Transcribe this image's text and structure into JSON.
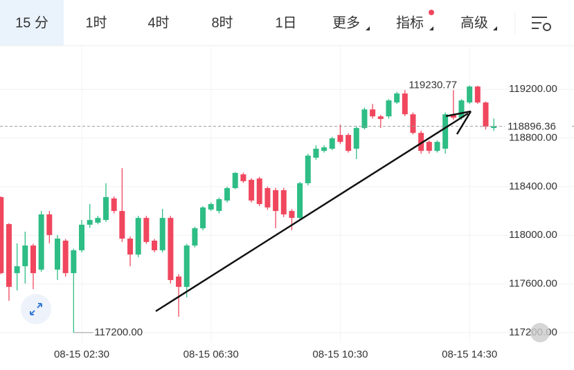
{
  "tabs": [
    "15 分",
    "1时",
    "4时",
    "8时",
    "1日",
    "更多",
    "指标",
    "高级"
  ],
  "chart_data": {
    "type": "candlestick",
    "categories": [
      null,
      null,
      null,
      null,
      null,
      null,
      null,
      null,
      null,
      null,
      "08-15 02:30",
      null,
      null,
      null,
      null,
      null,
      null,
      null,
      null,
      null,
      null,
      null,
      null,
      null,
      null,
      null,
      "08-15 06:30",
      null,
      null,
      null,
      null,
      null,
      null,
      null,
      null,
      null,
      null,
      null,
      null,
      null,
      null,
      null,
      "08-15 10:30",
      null,
      null,
      null,
      null,
      null,
      null,
      null,
      null,
      null,
      null,
      null,
      null,
      null,
      null,
      null,
      "08-15 14:30",
      null,
      null,
      null
    ],
    "open": [
      118314,
      118092,
      117689,
      117746,
      117916,
      117718,
      118172,
      117718,
      117956,
      117689,
      117877,
      118087,
      118104,
      118126,
      118303,
      118200,
      117973,
      117842,
      118143,
      117956,
      117877,
      118143,
      117661,
      117576,
      117916,
      118058,
      118212,
      118200,
      118286,
      118388,
      118501,
      118456,
      118467,
      118388,
      118371,
      118371,
      118200,
      118143,
      118428,
      118638,
      118694,
      118712,
      118825,
      118825,
      118712,
      118882,
      119035,
      118978,
      118978,
      119092,
      119166,
      118995,
      118842,
      118768,
      118694,
      118712,
      118995,
      118967,
      119092,
      119223,
      119092,
      118882
    ],
    "high": [
      118320,
      118100,
      117934,
      118030,
      117930,
      118200,
      118200,
      118002,
      117970,
      117890,
      118126,
      118257,
      118160,
      118428,
      118320,
      118552,
      117990,
      118160,
      118160,
      117970,
      118217,
      118160,
      117680,
      117930,
      118070,
      118240,
      118270,
      118310,
      118400,
      118520,
      118515,
      118470,
      118480,
      118400,
      118390,
      118390,
      118215,
      118440,
      118670,
      118740,
      118740,
      118810,
      118910,
      118840,
      118895,
      119050,
      119080,
      118990,
      119120,
      119180,
      119194,
      119010,
      118860,
      118780,
      118780,
      119010,
      119194,
      119120,
      119230.77,
      119230,
      119100,
      118960
    ],
    "low": [
      117680,
      117462,
      117547,
      117604,
      117558,
      117700,
      117934,
      117632,
      117660,
      117200,
      117860,
      118060,
      118090,
      118110,
      118180,
      117945,
      117746,
      117820,
      117930,
      117860,
      117860,
      117604,
      117331,
      117490,
      117900,
      118040,
      118200,
      118180,
      118270,
      118380,
      118430,
      118270,
      118240,
      118210,
      118058,
      118150,
      118041,
      118120,
      118410,
      118620,
      118680,
      118700,
      118750,
      118680,
      118626,
      118870,
      118960,
      118882,
      118960,
      119080,
      118980,
      118830,
      118670,
      118672,
      118680,
      118672,
      118950,
      118950,
      119080,
      119080,
      118870,
      118860
    ],
    "close": [
      117689,
      117576,
      117746,
      117916,
      117689,
      118172,
      118002,
      117973,
      117689,
      117877,
      118087,
      118126,
      118143,
      118314,
      118200,
      117973,
      117842,
      118143,
      117945,
      117877,
      118143,
      117632,
      117576,
      117916,
      118058,
      118229,
      118257,
      118297,
      118388,
      118513,
      118445,
      118286,
      118257,
      118229,
      118200,
      118172,
      118143,
      118428,
      118655,
      118712,
      118723,
      118797,
      118768,
      118694,
      118882,
      119035,
      118978,
      118956,
      119109,
      119166,
      118995,
      118842,
      118694,
      118694,
      118768,
      118995,
      118967,
      119109,
      119223,
      119092,
      118893,
      118896.36
    ],
    "up_color": "#2ebd85",
    "down_color": "#f0475e",
    "ylim": [
      117120,
      119565
    ],
    "yticks": [
      {
        "value": 117200,
        "label": "117200.00"
      },
      {
        "value": 117600,
        "label": "117600.00"
      },
      {
        "value": 118000,
        "label": "118000.00"
      },
      {
        "value": 118400,
        "label": "118400.00"
      },
      {
        "value": 118800,
        "label": "118800.00"
      },
      {
        "value": 119200,
        "label": "119200.00"
      }
    ],
    "low_label": "117200.00",
    "grid": true
  }
}
